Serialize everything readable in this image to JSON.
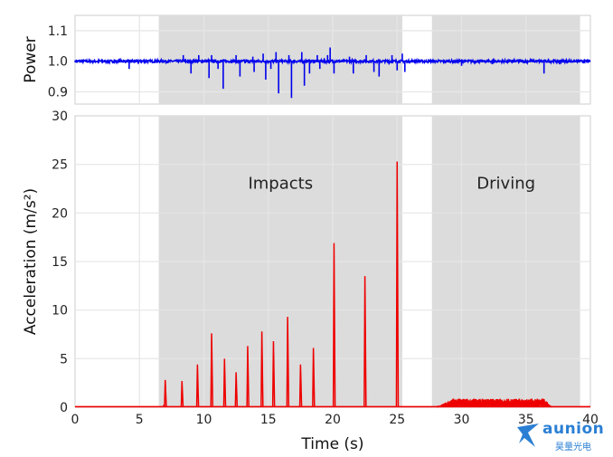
{
  "chart_data": [
    {
      "type": "line",
      "name_panel": "power",
      "ylabel": "Power",
      "xlim": [
        0,
        40
      ],
      "ylim": [
        0.86,
        1.15
      ],
      "yticks": [
        0.9,
        1.0,
        1.1
      ],
      "grid": true,
      "series_color": "#0000ee",
      "baseline": 1.0,
      "noise": 0.004,
      "spikes": [
        {
          "x": 4.2,
          "y": 0.975
        },
        {
          "x": 8.4,
          "y": 1.02
        },
        {
          "x": 9.0,
          "y": 0.96
        },
        {
          "x": 9.6,
          "y": 1.02
        },
        {
          "x": 10.4,
          "y": 0.945
        },
        {
          "x": 10.6,
          "y": 1.02
        },
        {
          "x": 11.1,
          "y": 0.975
        },
        {
          "x": 11.5,
          "y": 0.91
        },
        {
          "x": 12.5,
          "y": 1.02
        },
        {
          "x": 12.8,
          "y": 0.95
        },
        {
          "x": 13.8,
          "y": 1.015
        },
        {
          "x": 13.9,
          "y": 0.965
        },
        {
          "x": 14.6,
          "y": 1.025
        },
        {
          "x": 14.8,
          "y": 0.94
        },
        {
          "x": 15.2,
          "y": 0.975
        },
        {
          "x": 15.6,
          "y": 1.03
        },
        {
          "x": 15.8,
          "y": 0.895
        },
        {
          "x": 16.6,
          "y": 1.02
        },
        {
          "x": 16.8,
          "y": 0.88
        },
        {
          "x": 17.6,
          "y": 1.03
        },
        {
          "x": 17.8,
          "y": 0.92
        },
        {
          "x": 18.2,
          "y": 0.96
        },
        {
          "x": 18.8,
          "y": 1.02
        },
        {
          "x": 19.0,
          "y": 0.975
        },
        {
          "x": 19.6,
          "y": 1.02
        },
        {
          "x": 19.8,
          "y": 1.045
        },
        {
          "x": 20.1,
          "y": 0.96
        },
        {
          "x": 21.3,
          "y": 1.015
        },
        {
          "x": 21.6,
          "y": 0.96
        },
        {
          "x": 22.6,
          "y": 1.02
        },
        {
          "x": 23.2,
          "y": 0.965
        },
        {
          "x": 23.6,
          "y": 0.95
        },
        {
          "x": 24.6,
          "y": 1.02
        },
        {
          "x": 25.0,
          "y": 0.97
        },
        {
          "x": 25.4,
          "y": 1.025
        },
        {
          "x": 25.6,
          "y": 0.965
        },
        {
          "x": 30.0,
          "y": 0.985
        },
        {
          "x": 32.4,
          "y": 0.99
        },
        {
          "x": 36.4,
          "y": 0.96
        },
        {
          "x": 37.6,
          "y": 0.99
        }
      ]
    },
    {
      "type": "line",
      "name_panel": "acceleration",
      "xlabel": "Time (s)",
      "ylabel": "Acceleration (m/s²)",
      "xlim": [
        0,
        40
      ],
      "ylim": [
        0,
        30
      ],
      "xticks": [
        0,
        5,
        10,
        15,
        20,
        25,
        30,
        35,
        40
      ],
      "yticks": [
        0,
        5,
        10,
        15,
        20,
        25,
        30
      ],
      "grid": true,
      "series_color": "#ee0000",
      "baseline": 0.05,
      "spikes": [
        {
          "x": 6.9,
          "y": 0.2
        },
        {
          "x": 7.0,
          "y": 2.8
        },
        {
          "x": 8.3,
          "y": 2.7
        },
        {
          "x": 9.5,
          "y": 4.4
        },
        {
          "x": 10.6,
          "y": 7.6
        },
        {
          "x": 11.6,
          "y": 5.0
        },
        {
          "x": 12.5,
          "y": 3.6
        },
        {
          "x": 13.4,
          "y": 6.3
        },
        {
          "x": 14.5,
          "y": 7.8
        },
        {
          "x": 15.4,
          "y": 6.8
        },
        {
          "x": 16.5,
          "y": 9.3
        },
        {
          "x": 17.5,
          "y": 4.4
        },
        {
          "x": 18.5,
          "y": 6.1
        },
        {
          "x": 20.1,
          "y": 16.9
        },
        {
          "x": 22.5,
          "y": 13.5
        },
        {
          "x": 25.0,
          "y": 25.3
        }
      ],
      "driving_range": [
        28.1,
        37.0
      ],
      "driving_level": 0.6,
      "shaded_regions": [
        {
          "x": [
            6.5,
            25.4
          ],
          "label": "Impacts"
        },
        {
          "x": [
            27.7,
            39.2
          ],
          "label": "Driving"
        }
      ]
    }
  ],
  "logo": {
    "text": "aunion",
    "sub": "昊量光电"
  }
}
